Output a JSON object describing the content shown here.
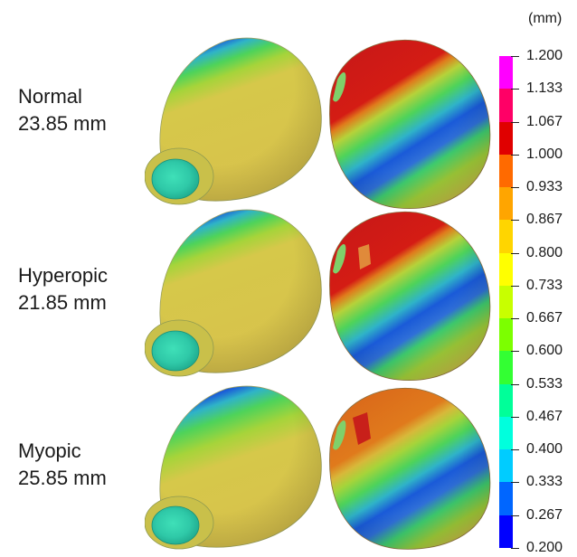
{
  "rows": [
    {
      "name": "Normal",
      "length": "23.85 mm"
    },
    {
      "name": "Hyperopic",
      "length": "21.85 mm"
    },
    {
      "name": "Myopic",
      "length": "25.85 mm"
    }
  ],
  "colorbar": {
    "unit": "(mm)",
    "ticks": [
      "1.200",
      "1.133",
      "1.067",
      "1.000",
      "0.933",
      "0.867",
      "0.800",
      "0.733",
      "0.667",
      "0.600",
      "0.533",
      "0.467",
      "0.400",
      "0.333",
      "0.267",
      "0.200"
    ],
    "colors": [
      "#ff00ff",
      "#ff0066",
      "#e00000",
      "#ff6a00",
      "#ffa500",
      "#ffd500",
      "#ffff00",
      "#c8ff00",
      "#7cff00",
      "#33ff33",
      "#00ff99",
      "#00ffdd",
      "#00ccff",
      "#0066ff",
      "#0000ff"
    ]
  }
}
